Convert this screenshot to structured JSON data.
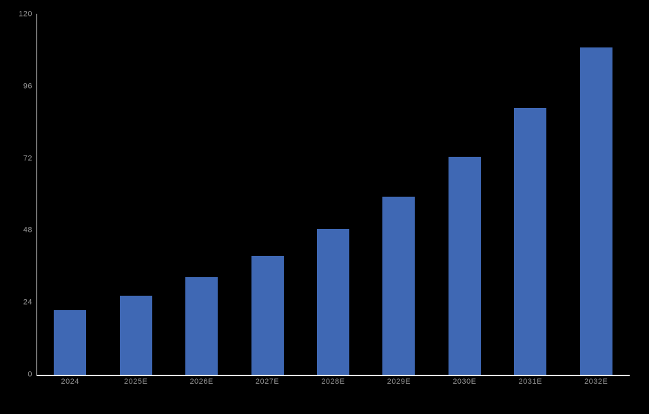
{
  "chart_data": {
    "type": "bar",
    "title": "",
    "xlabel": "",
    "ylabel": "",
    "categories": [
      "2024",
      "2025E",
      "2026E",
      "2027E",
      "2028E",
      "2029E",
      "2030E",
      "2031E",
      "2032E"
    ],
    "values": [
      21.6,
      26.3,
      32.5,
      39.7,
      48.6,
      59.4,
      72.7,
      88.9,
      109.0
    ],
    "ylim": [
      0,
      120
    ],
    "yticks": [
      0,
      24,
      48,
      72,
      96,
      120
    ],
    "grid": false,
    "legend": null,
    "colors": {
      "background": "#000000",
      "bar": "#3F68B4",
      "axis_line": "#E8E8E8",
      "tick_label": "#949494"
    }
  }
}
